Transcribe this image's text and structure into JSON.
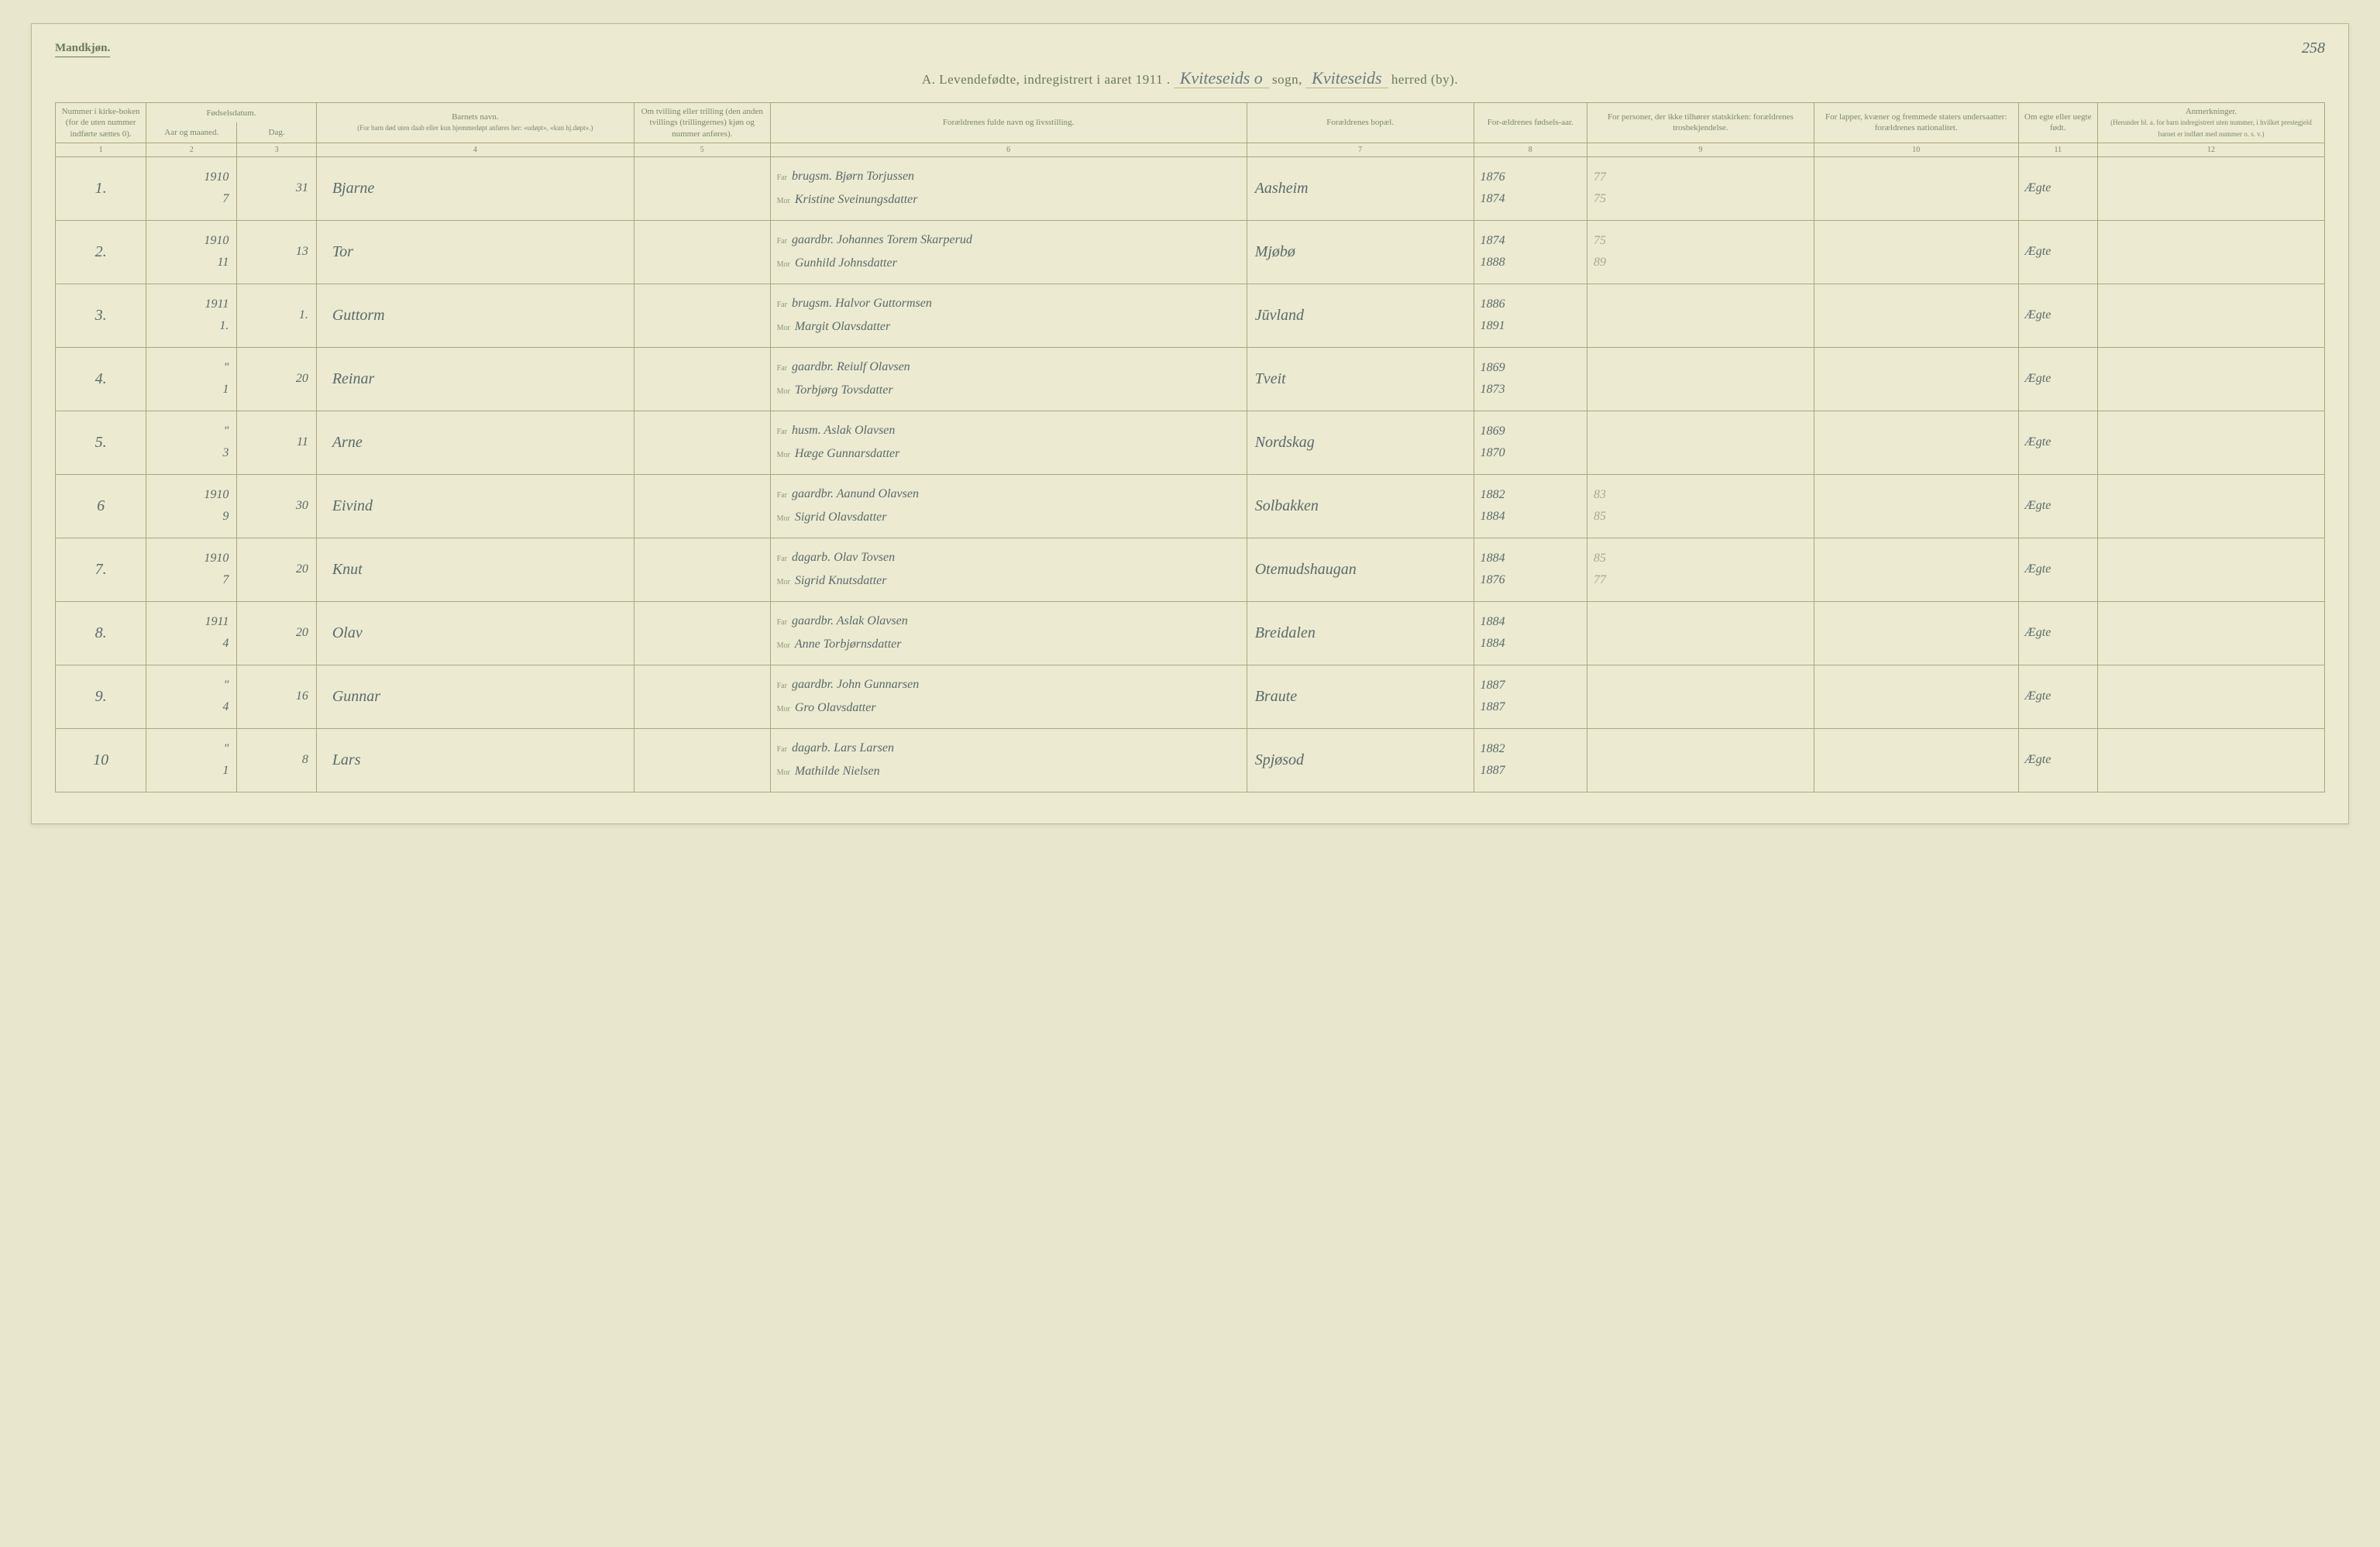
{
  "gender_label": "Mandkjøn.",
  "page_number": "258",
  "title": {
    "prefix": "A.  Levendefødte, indregistrert i aaret 1911 .",
    "sogn_written": "Kviteseids o",
    "sogn_label": "sogn,",
    "herred_written": "Kviteseids",
    "herred_label": "herred (by)."
  },
  "columns": {
    "c1": "Nummer i kirke-boken (for de uten nummer indførte sættes 0).",
    "c2": "Fødselsdatum.",
    "c2a": "Aar og maaned.",
    "c2b": "Dag.",
    "c4": "Barnets navn.",
    "c4sub": "(For barn død uten daab eller kun hjemmedøpt anføres her: «udøpt», «kun hj.døpt».)",
    "c5": "Om tvilling eller trilling (den anden tvillings (trillingernes) kjøn og nummer anføres).",
    "c6": "Forældrenes fulde navn og livsstilling.",
    "c7": "Forældrenes bopæl.",
    "c8": "For-ældrenes fødsels-aar.",
    "c9": "For personer, der ikke tilhører statskirken: forældrenes trosbekjendelse.",
    "c10": "For lapper, kvæner og fremmede staters undersaatter: forældrenes nationalitet.",
    "c11": "Om egte eller uegte født.",
    "c12": "Anmerkninger.",
    "c12sub": "(Herunder bl. a. for barn indregistrert uten nummer, i hvilket prestegjeld barnet er indført med nummer o. s. v.)",
    "nums": [
      "1",
      "2",
      "3",
      "4",
      "5",
      "6",
      "7",
      "8",
      "9",
      "10",
      "11",
      "12"
    ]
  },
  "parent_labels": {
    "far": "Far",
    "mor": "Mor"
  },
  "rows": [
    {
      "num": "1.",
      "year_month": "1910\n7",
      "day": "31",
      "child": "Bjarne",
      "far": "brugsm. Bjørn Torjussen",
      "mor": "Kristine Sveinungsdatter",
      "bopael": "Aasheim",
      "birth_years": "1876\n1874",
      "notes9": "77\n75",
      "legit": "Ægte"
    },
    {
      "num": "2.",
      "year_month": "1910\n11",
      "day": "13",
      "child": "Tor",
      "far": "gaardbr. Johannes Torem Skarperud",
      "mor": "Gunhild Johnsdatter",
      "bopael": "Mjøbø",
      "birth_years": "1874\n1888",
      "notes9": "75\n89",
      "legit": "Ægte"
    },
    {
      "num": "3.",
      "year_month": "1911\n1.",
      "day": "1.",
      "child": "Guttorm",
      "far": "brugsm. Halvor Guttormsen",
      "mor": "Margit Olavsdatter",
      "bopael": "Jūvland",
      "birth_years": "1886\n1891",
      "notes9": "",
      "legit": "Ægte"
    },
    {
      "num": "4.",
      "year_month": "\"\n1",
      "day": "20",
      "child": "Reinar",
      "far": "gaardbr. Reiulf Olavsen",
      "mor": "Torbjørg Tovsdatter",
      "bopael": "Tveit",
      "birth_years": "1869\n1873",
      "notes9": "",
      "legit": "Ægte"
    },
    {
      "num": "5.",
      "year_month": "\"\n3",
      "day": "11",
      "child": "Arne",
      "far": "husm. Aslak Olavsen",
      "mor": "Hæge Gunnarsdatter",
      "bopael": "Nordskag",
      "birth_years": "1869\n1870",
      "notes9": "",
      "legit": "Ægte"
    },
    {
      "num": "6",
      "year_month": "1910\n9",
      "day": "30",
      "child": "Eivind",
      "far": "gaardbr. Aanund Olavsen",
      "mor": "Sigrid Olavsdatter",
      "bopael": "Solbakken",
      "birth_years": "1882\n1884",
      "notes9": "83\n85",
      "legit": "Ægte"
    },
    {
      "num": "7.",
      "year_month": "1910\n7",
      "day": "20",
      "child": "Knut",
      "far": "dagarb. Olav Tovsen",
      "mor": "Sigrid Knutsdatter",
      "bopael": "Otemudshaugan",
      "birth_years": "1884\n1876",
      "notes9": "85\n77",
      "legit": "Ægte"
    },
    {
      "num": "8.",
      "year_month": "1911\n4",
      "day": "20",
      "child": "Olav",
      "far": "gaardbr. Aslak Olavsen",
      "mor": "Anne Torbjørnsdatter",
      "bopael": "Breidalen",
      "birth_years": "1884\n1884",
      "notes9": "",
      "legit": "Ægte"
    },
    {
      "num": "9.",
      "year_month": "\"\n4",
      "day": "16",
      "child": "Gunnar",
      "far": "gaardbr. John Gunnarsen",
      "mor": "Gro Olavsdatter",
      "bopael": "Braute",
      "birth_years": "1887\n1887",
      "notes9": "",
      "legit": "Ægte"
    },
    {
      "num": "10",
      "year_month": "\"\n1",
      "day": "8",
      "child": "Lars",
      "far": "dagarb. Lars Larsen",
      "mor": "Mathilde Nielsen",
      "bopael": "Spjøsod",
      "birth_years": "1882\n1887",
      "notes9": "",
      "legit": "Ægte"
    }
  ]
}
